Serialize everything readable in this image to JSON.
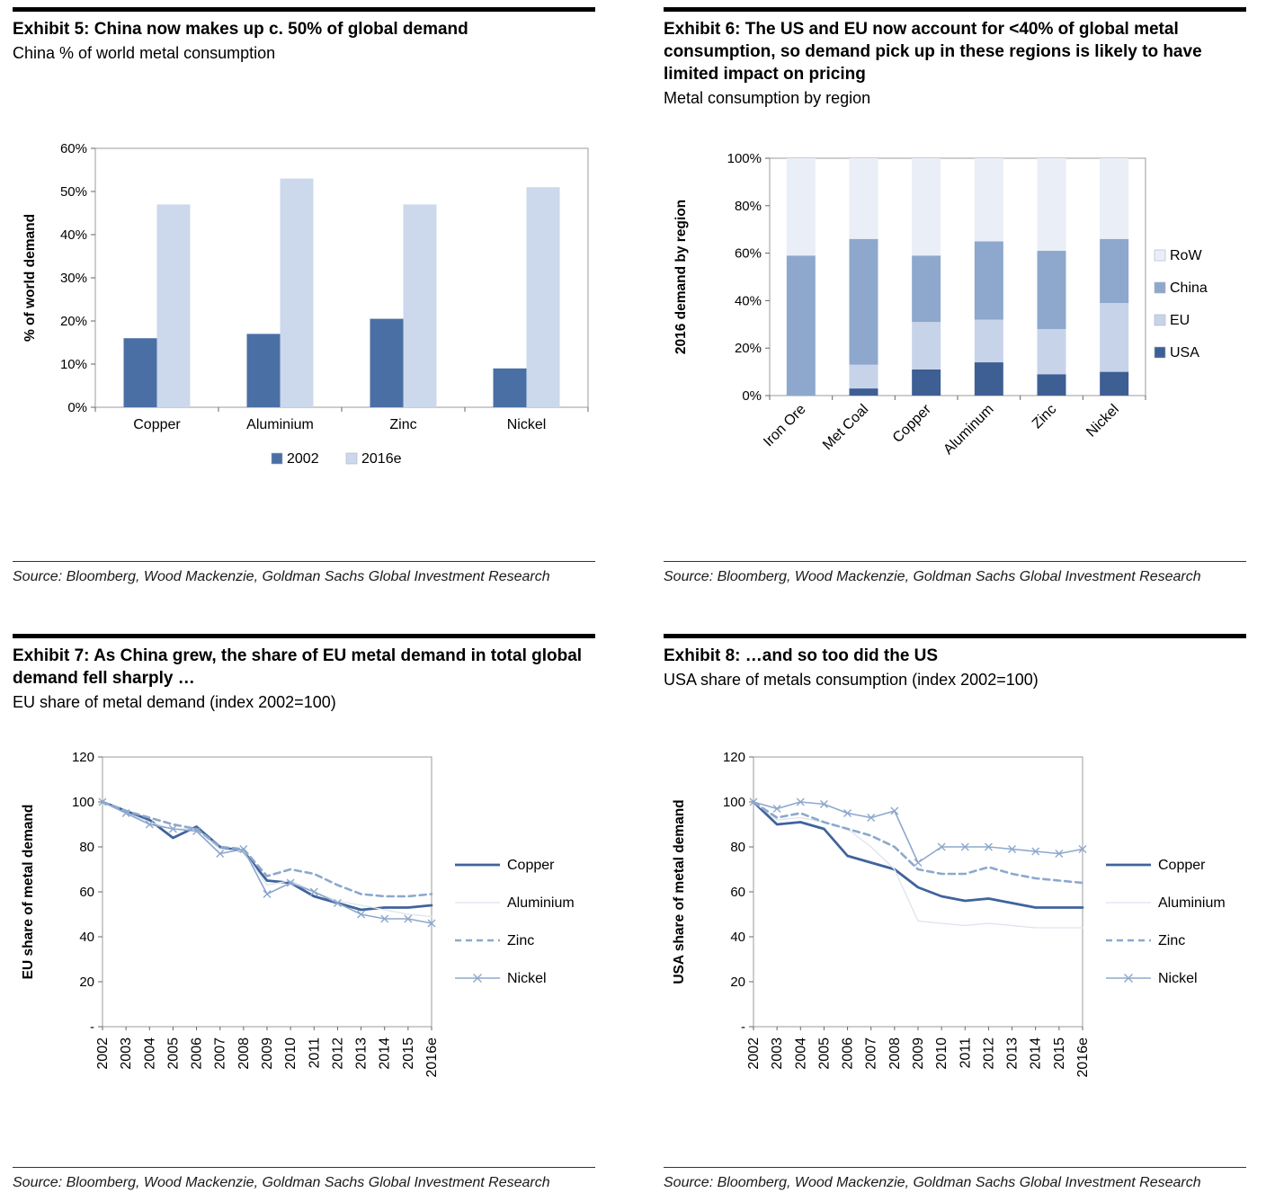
{
  "panels": [
    {
      "title": "Exhibit 5: China now makes up c. 50% of global demand",
      "subtitle": "China % of world metal consumption",
      "source": "Source: Bloomberg, Wood Mackenzie, Goldman Sachs Global Investment Research"
    },
    {
      "title": "Exhibit 6: The US and EU now account for <40% of global metal consumption, so demand pick up in these regions is likely to have limited impact on pricing",
      "subtitle": "Metal consumption by region",
      "source": "Source: Bloomberg, Wood Mackenzie, Goldman Sachs Global Investment Research"
    },
    {
      "title": "Exhibit 7: As China grew, the share of EU metal demand in total global demand fell sharply …",
      "subtitle": "EU share of metal demand  (index 2002=100)",
      "source": "Source: Bloomberg, Wood Mackenzie, Goldman Sachs Global Investment Research"
    },
    {
      "title": "Exhibit 8: …and so too did the US",
      "subtitle": "USA share of metals consumption (index 2002=100)",
      "source": "Source: Bloomberg, Wood Mackenzie, Goldman Sachs Global Investment Research"
    }
  ],
  "chart_data": [
    {
      "type": "bar",
      "exhibit": "Exhibit 5",
      "categories": [
        "Copper",
        "Aluminium",
        "Zinc",
        "Nickel"
      ],
      "series": [
        {
          "name": "2002",
          "color": "#4a6fa5",
          "values": [
            16,
            17,
            20.5,
            9
          ]
        },
        {
          "name": "2016e",
          "color": "#ccd8eb",
          "values": [
            47,
            53,
            47,
            51
          ]
        }
      ],
      "ylabel": "% of world demand",
      "ylim": [
        0,
        60
      ],
      "ytick_step": 10,
      "ytick_suffix": "%",
      "grid": false,
      "legend_position": "bottom"
    },
    {
      "type": "stacked_bar",
      "exhibit": "Exhibit 6",
      "categories": [
        "Iron Ore",
        "Met Coal",
        "Copper",
        "Aluminum",
        "Zinc",
        "Nickel"
      ],
      "series": [
        {
          "name": "USA",
          "color": "#3e5f94",
          "values": [
            0,
            3,
            11,
            14,
            9,
            10
          ]
        },
        {
          "name": "EU",
          "color": "#c7d3e8",
          "values": [
            0,
            10,
            20,
            18,
            19,
            29
          ]
        },
        {
          "name": "China",
          "color": "#8da8cc",
          "values": [
            59,
            53,
            28,
            33,
            33,
            27
          ]
        },
        {
          "name": "RoW",
          "color": "#eaeef7",
          "values": [
            41,
            34,
            41,
            35,
            39,
            34
          ]
        }
      ],
      "legend_order": [
        "RoW",
        "China",
        "EU",
        "USA"
      ],
      "ylabel": "2016 demand by region",
      "ylim": [
        0,
        100
      ],
      "ytick_step": 20,
      "ytick_suffix": "%",
      "grid": false,
      "legend_position": "right"
    },
    {
      "type": "line",
      "exhibit": "Exhibit 7",
      "x": [
        "2002",
        "2003",
        "2004",
        "2005",
        "2006",
        "2007",
        "2008",
        "2009",
        "2010",
        "2011",
        "2012",
        "2013",
        "2014",
        "2015",
        "2016e"
      ],
      "series": [
        {
          "name": "Copper",
          "color": "#3f639c",
          "width": 2.8,
          "values": [
            100,
            96,
            92,
            84,
            89,
            80,
            78,
            65,
            64,
            58,
            55,
            52,
            53,
            53,
            54
          ]
        },
        {
          "name": "Aluminium",
          "color": "#dde3ef",
          "width": 1.3,
          "values": [
            100,
            95,
            91,
            88,
            88,
            79,
            78,
            63,
            65,
            60,
            56,
            54,
            52,
            50,
            49
          ]
        },
        {
          "name": "Zinc",
          "color": "#8da8cc",
          "width": 2.6,
          "dash": "7,5",
          "values": [
            100,
            96,
            93,
            90,
            88,
            80,
            79,
            67,
            70,
            68,
            63,
            59,
            58,
            58,
            59
          ]
        },
        {
          "name": "Nickel",
          "color": "#8da8cc",
          "width": 1.6,
          "marker": "x",
          "values": [
            100,
            95,
            90,
            88,
            87,
            77,
            79,
            59,
            64,
            60,
            55,
            50,
            48,
            48,
            46
          ]
        }
      ],
      "ylabel": "EU share of metal demand",
      "ylim": [
        0,
        120
      ],
      "ytick_step": 20,
      "zero_label": "-",
      "grid": false,
      "legend_position": "right"
    },
    {
      "type": "line",
      "exhibit": "Exhibit 8",
      "x": [
        "2002",
        "2003",
        "2004",
        "2005",
        "2006",
        "2007",
        "2008",
        "2009",
        "2010",
        "2011",
        "2012",
        "2013",
        "2014",
        "2015",
        "2016e"
      ],
      "series": [
        {
          "name": "Copper",
          "color": "#3f639c",
          "width": 2.8,
          "values": [
            100,
            90,
            91,
            88,
            76,
            73,
            70,
            62,
            58,
            56,
            57,
            55,
            53,
            53,
            53
          ]
        },
        {
          "name": "Aluminium",
          "color": "#dde3ef",
          "width": 1.3,
          "values": [
            100,
            92,
            93,
            91,
            88,
            80,
            70,
            47,
            46,
            45,
            46,
            45,
            44,
            44,
            44
          ]
        },
        {
          "name": "Zinc",
          "color": "#8da8cc",
          "width": 2.6,
          "dash": "7,5",
          "values": [
            100,
            93,
            95,
            91,
            88,
            85,
            80,
            70,
            68,
            68,
            71,
            68,
            66,
            65,
            64
          ]
        },
        {
          "name": "Nickel",
          "color": "#8da8cc",
          "width": 1.6,
          "marker": "x",
          "values": [
            100,
            97,
            100,
            99,
            95,
            93,
            96,
            73,
            80,
            80,
            80,
            79,
            78,
            77,
            79
          ]
        }
      ],
      "ylabel": "USA share of metal demand",
      "ylim": [
        0,
        120
      ],
      "ytick_step": 20,
      "zero_label": "-",
      "grid": false,
      "legend_position": "right"
    }
  ]
}
